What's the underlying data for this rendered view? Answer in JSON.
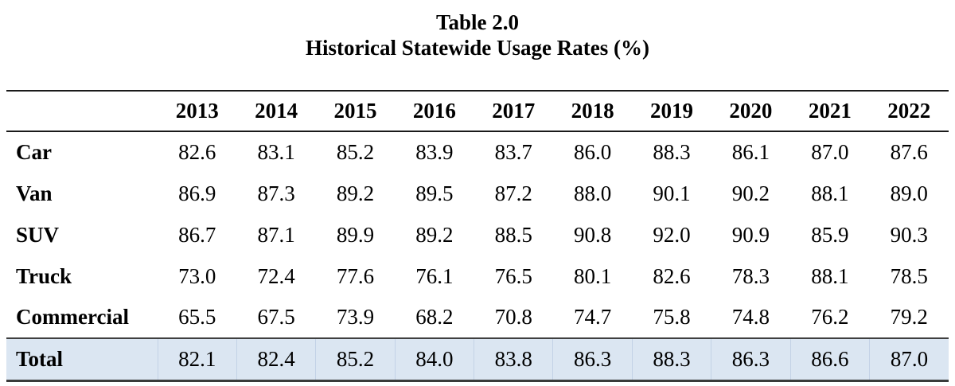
{
  "title": {
    "line1": "Table 2.0",
    "line2": "Historical Statewide Usage Rates (%)"
  },
  "colors": {
    "total_row_bg": "#dbe6f2",
    "rule_dark": "#1a1a1a",
    "rule_total": "#3a3a3a"
  },
  "chart_data": {
    "type": "table",
    "title": "Table 2.0 — Historical Statewide Usage Rates (%)",
    "columns": [
      "2013",
      "2014",
      "2015",
      "2016",
      "2017",
      "2018",
      "2019",
      "2020",
      "2021",
      "2022"
    ],
    "rows": [
      {
        "label": "Car",
        "values": [
          "82.6",
          "83.1",
          "85.2",
          "83.9",
          "83.7",
          "86.0",
          "88.3",
          "86.1",
          "87.0",
          "87.6"
        ]
      },
      {
        "label": "Van",
        "values": [
          "86.9",
          "87.3",
          "89.2",
          "89.5",
          "87.2",
          "88.0",
          "90.1",
          "90.2",
          "88.1",
          "89.0"
        ]
      },
      {
        "label": "SUV",
        "values": [
          "86.7",
          "87.1",
          "89.9",
          "89.2",
          "88.5",
          "90.8",
          "92.0",
          "90.9",
          "85.9",
          "90.3"
        ]
      },
      {
        "label": "Truck",
        "values": [
          "73.0",
          "72.4",
          "77.6",
          "76.1",
          "76.5",
          "80.1",
          "82.6",
          "78.3",
          "88.1",
          "78.5"
        ]
      },
      {
        "label": "Commercial",
        "values": [
          "65.5",
          "67.5",
          "73.9",
          "68.2",
          "70.8",
          "74.7",
          "75.8",
          "74.8",
          "76.2",
          "79.2"
        ]
      }
    ],
    "total": {
      "label": "Total",
      "values": [
        "82.1",
        "82.4",
        "85.2",
        "84.0",
        "83.8",
        "86.3",
        "88.3",
        "86.3",
        "86.6",
        "87.0"
      ]
    }
  }
}
